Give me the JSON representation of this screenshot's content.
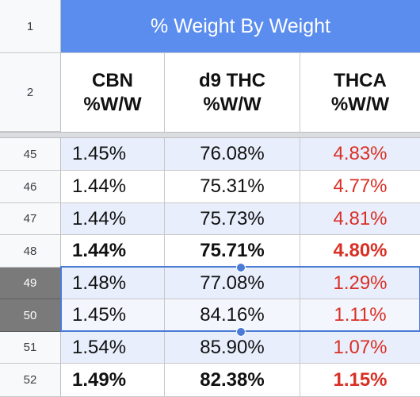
{
  "sheet": {
    "title": "% Weight By Weight",
    "header_rows": [
      {
        "num": "1"
      },
      {
        "num": "2"
      }
    ],
    "columns": [
      {
        "line1": "CBN",
        "line2": "%W/W",
        "color": "#111111"
      },
      {
        "line1": "d9 THC",
        "line2": "%W/W",
        "color": "#111111"
      },
      {
        "line1": "THCA",
        "line2": "%W/W",
        "color": "#d93025"
      }
    ],
    "rows": [
      {
        "num": "45",
        "cbn": "1.45%",
        "d9": "76.08%",
        "thca": "4.83%"
      },
      {
        "num": "46",
        "cbn": "1.44%",
        "d9": "75.31%",
        "thca": "4.77%"
      },
      {
        "num": "47",
        "cbn": "1.44%",
        "d9": "75.73%",
        "thca": "4.81%"
      },
      {
        "num": "48",
        "cbn": "1.44%",
        "d9": "75.71%",
        "thca": "4.80%"
      },
      {
        "num": "49",
        "cbn": "1.48%",
        "d9": "77.08%",
        "thca": "1.29%"
      },
      {
        "num": "50",
        "cbn": "1.45%",
        "d9": "84.16%",
        "thca": "1.11%"
      },
      {
        "num": "51",
        "cbn": "1.54%",
        "d9": "85.90%",
        "thca": "1.07%"
      },
      {
        "num": "52",
        "cbn": "1.49%",
        "d9": "82.38%",
        "thca": "1.15%"
      }
    ],
    "colors": {
      "title_bg": "#5b8def",
      "thca_text": "#d93025",
      "selection": "#4a7bd6",
      "selected_row_header": "#7a7a7a"
    }
  }
}
